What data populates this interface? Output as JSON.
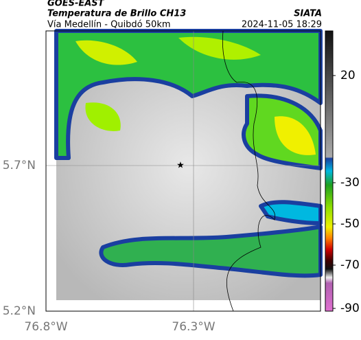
{
  "header": {
    "title": "GOES-EAST",
    "subtitle": "Temperatura de Brillo CH13",
    "source": "SIATA",
    "route": "Vía Medellín - Quibdó 50km",
    "timestamp": "2024-11-05 18:29"
  },
  "map": {
    "lat_labels": [
      "5.7°N",
      "5.2°N"
    ],
    "lon_labels": [
      "76.8°W",
      "76.3°W"
    ]
  },
  "colorbar": {
    "ticks": [
      "20",
      "-30",
      "-50",
      "-70",
      "-90"
    ]
  }
}
